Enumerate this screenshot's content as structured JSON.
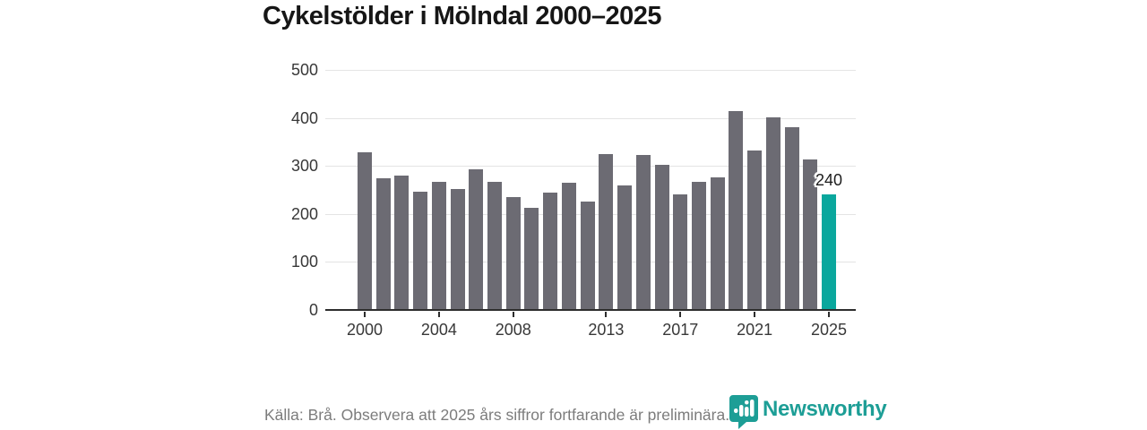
{
  "title": "Cykelstölder i Mölndal 2000–2025",
  "colors": {
    "bar": "#6c6b73",
    "highlight": "#0aa79d",
    "brand": "#1d9e96",
    "grid": "#e4e4e4",
    "axis": "#2d2d2d",
    "title_text": "#161616",
    "tick_text": "#383838",
    "footer_text": "#7c7c7c"
  },
  "chart_data": {
    "type": "bar",
    "title": "Cykelstölder i Mölndal 2000–2025",
    "categories": [
      2000,
      2001,
      2002,
      2003,
      2004,
      2005,
      2006,
      2007,
      2008,
      2009,
      2010,
      2011,
      2012,
      2013,
      2014,
      2015,
      2016,
      2017,
      2018,
      2019,
      2020,
      2021,
      2022,
      2023,
      2024,
      2025
    ],
    "values": [
      328,
      274,
      280,
      247,
      266,
      252,
      293,
      266,
      235,
      212,
      244,
      265,
      226,
      325,
      259,
      322,
      302,
      240,
      266,
      276,
      415,
      333,
      401,
      380,
      313,
      240
    ],
    "highlight_index": 25,
    "highlight_label": "240",
    "xlabel": "",
    "ylabel": "",
    "ylim": [
      0,
      500
    ],
    "yticks": [
      0,
      100,
      200,
      300,
      400,
      500
    ],
    "xticks": [
      2000,
      2004,
      2008,
      2013,
      2017,
      2021,
      2025
    ],
    "grid": "horizontal",
    "legend": "none"
  },
  "footer": {
    "source_note": "Källa: Brå. Observera att 2025 års siffror fortfarande är preliminära.",
    "brand_name": "Newsworthy"
  }
}
